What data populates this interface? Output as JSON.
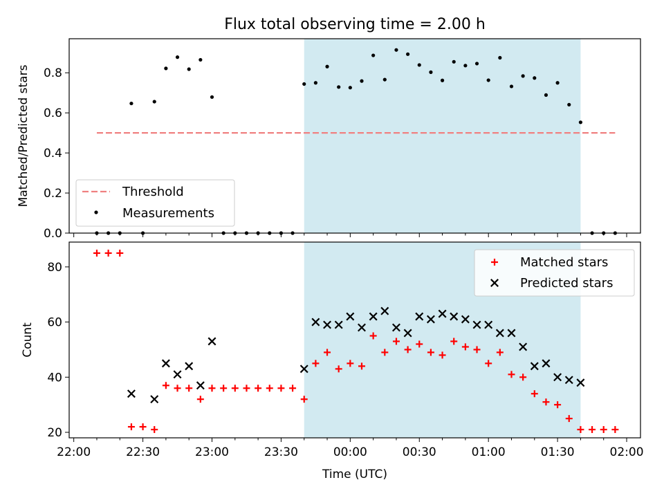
{
  "figure": {
    "title": "Flux total observing time = 2.00 h"
  },
  "colors": {
    "shade": "#add8e6",
    "threshold": "#f08080",
    "measurements": "#000000",
    "matched": "#ff0000",
    "predicted": "#000000"
  },
  "chart_data": [
    {
      "type": "scatter",
      "panel": "top",
      "title": "Flux total observing time = 2.00 h",
      "ylabel": "Matched/Predicted stars",
      "xlabel": "",
      "xlim": [
        "21:58",
        "02:06"
      ],
      "ylim": [
        0,
        0.97
      ],
      "xticks": [
        "22:00",
        "22:30",
        "23:00",
        "23:30",
        "00:00",
        "00:30",
        "01:00",
        "01:30",
        "02:00"
      ],
      "yticks": [
        "0.0",
        "0.2",
        "0.4",
        "0.6",
        "0.8"
      ],
      "shaded_region": {
        "from": "23:40",
        "to": "01:40"
      },
      "legend_position": "lower-left",
      "threshold": {
        "name": "Threshold",
        "value": 0.5,
        "from": "22:10",
        "to": "01:55"
      },
      "series": [
        {
          "name": "Measurements",
          "marker": "dot",
          "x": [
            "22:10",
            "22:15",
            "22:20",
            "22:25",
            "22:30",
            "22:35",
            "22:40",
            "22:45",
            "22:50",
            "22:55",
            "23:00",
            "23:05",
            "23:10",
            "23:15",
            "23:20",
            "23:25",
            "23:30",
            "23:35",
            "23:40",
            "23:45",
            "23:50",
            "23:55",
            "00:00",
            "00:05",
            "00:10",
            "00:15",
            "00:20",
            "00:25",
            "00:30",
            "00:35",
            "00:40",
            "00:45",
            "00:50",
            "00:55",
            "01:00",
            "01:05",
            "01:10",
            "01:15",
            "01:20",
            "01:25",
            "01:30",
            "01:35",
            "01:40",
            "01:45",
            "01:50",
            "01:55"
          ],
          "y": [
            0.0,
            0.0,
            0.0,
            0.647,
            0.0,
            0.656,
            0.822,
            0.878,
            0.818,
            0.865,
            0.679,
            0.0,
            0.0,
            0.0,
            0.0,
            0.0,
            0.0,
            0.0,
            0.744,
            0.75,
            0.831,
            0.729,
            0.726,
            0.759,
            0.887,
            0.766,
            0.914,
            0.893,
            0.839,
            0.803,
            0.762,
            0.855,
            0.836,
            0.846,
            0.763,
            0.875,
            0.732,
            0.784,
            0.774,
            0.689,
            0.75,
            0.641,
            0.553,
            0.0,
            0.0,
            0.0
          ]
        }
      ]
    },
    {
      "type": "scatter",
      "panel": "bottom",
      "xlabel": "Time (UTC)",
      "ylabel": "Count",
      "xlim": [
        "21:58",
        "02:06"
      ],
      "ylim": [
        18,
        89
      ],
      "xticks": [
        "22:00",
        "22:30",
        "23:00",
        "23:30",
        "00:00",
        "00:30",
        "01:00",
        "01:30",
        "02:00"
      ],
      "yticks": [
        "20",
        "40",
        "60",
        "80"
      ],
      "shaded_region": {
        "from": "23:40",
        "to": "01:40"
      },
      "legend_position": "top-right",
      "series": [
        {
          "name": "Matched stars",
          "marker": "plus",
          "x": [
            "22:10",
            "22:15",
            "22:20",
            "22:25",
            "22:30",
            "22:35",
            "22:40",
            "22:45",
            "22:50",
            "22:55",
            "23:00",
            "23:05",
            "23:10",
            "23:15",
            "23:20",
            "23:25",
            "23:30",
            "23:35",
            "23:40",
            "23:45",
            "23:50",
            "23:55",
            "00:00",
            "00:05",
            "00:10",
            "00:15",
            "00:20",
            "00:25",
            "00:30",
            "00:35",
            "00:40",
            "00:45",
            "00:50",
            "00:55",
            "01:00",
            "01:05",
            "01:10",
            "01:15",
            "01:20",
            "01:25",
            "01:30",
            "01:35",
            "01:40",
            "01:45",
            "01:50",
            "01:55"
          ],
          "y": [
            85,
            85,
            85,
            22,
            22,
            21,
            37,
            36,
            36,
            32,
            36,
            36,
            36,
            36,
            36,
            36,
            36,
            36,
            32,
            45,
            49,
            43,
            45,
            44,
            55,
            49,
            53,
            50,
            52,
            49,
            48,
            53,
            51,
            50,
            45,
            49,
            41,
            40,
            34,
            31,
            30,
            25,
            21,
            21,
            21,
            21
          ]
        },
        {
          "name": "Predicted stars",
          "marker": "x",
          "x": [
            "22:25",
            "22:35",
            "22:40",
            "22:45",
            "22:50",
            "22:55",
            "23:00",
            "23:40",
            "23:45",
            "23:50",
            "23:55",
            "00:00",
            "00:05",
            "00:10",
            "00:15",
            "00:20",
            "00:25",
            "00:30",
            "00:35",
            "00:40",
            "00:45",
            "00:50",
            "00:55",
            "01:00",
            "01:05",
            "01:10",
            "01:15",
            "01:20",
            "01:25",
            "01:30",
            "01:35",
            "01:40"
          ],
          "y": [
            34,
            32,
            45,
            41,
            44,
            37,
            53,
            43,
            60,
            59,
            59,
            62,
            58,
            62,
            64,
            58,
            56,
            62,
            61,
            63,
            62,
            61,
            59,
            59,
            56,
            56,
            51,
            44,
            45,
            40,
            39,
            38
          ]
        }
      ]
    }
  ]
}
